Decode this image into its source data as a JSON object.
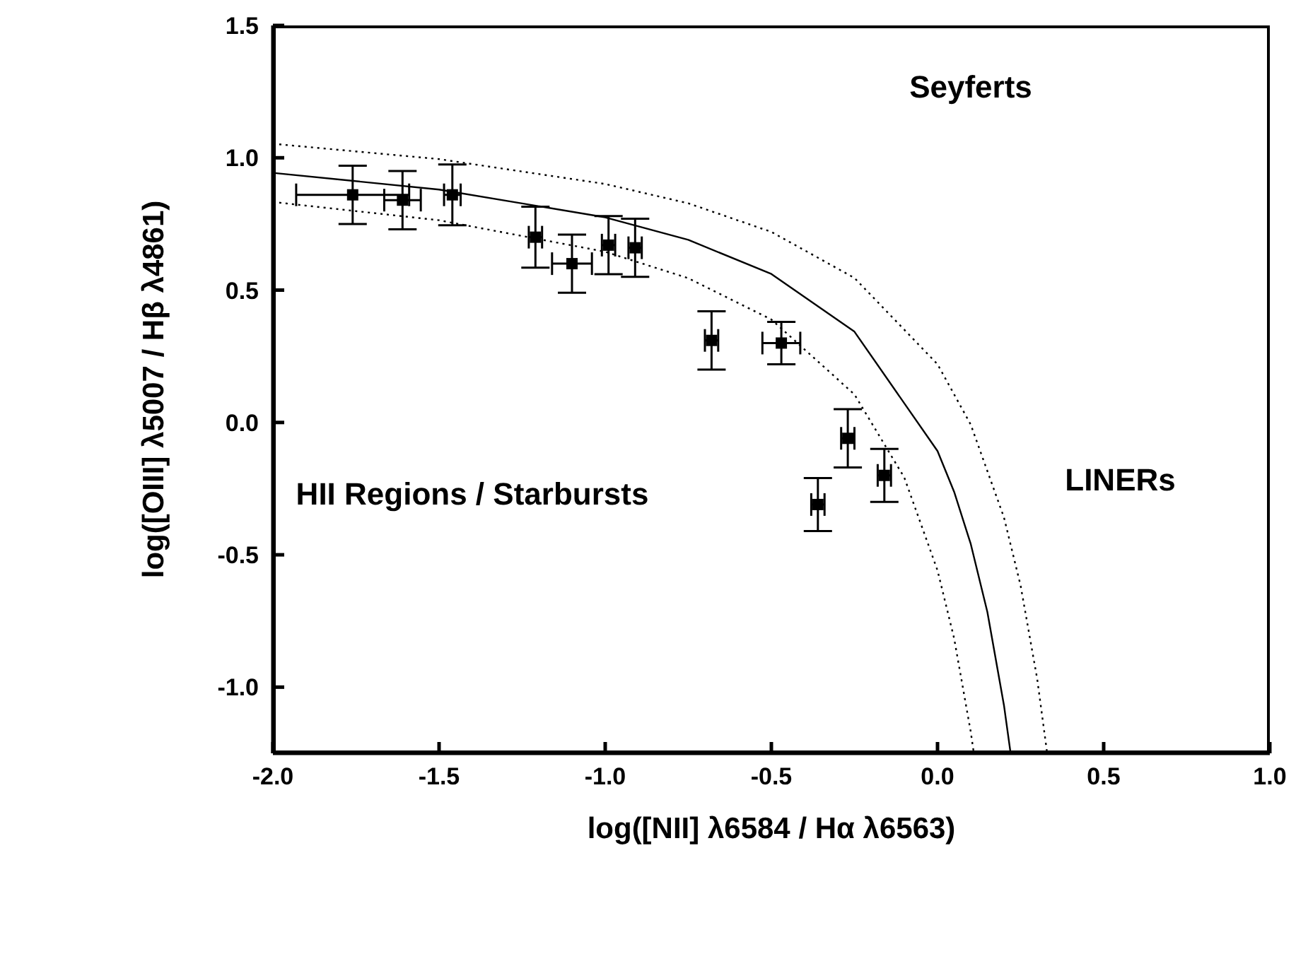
{
  "chart_data": {
    "type": "scatter",
    "xlabel": "log([NII] λ6584 / Hα λ6563)",
    "ylabel": "log([OIII] λ5007 / Hβ λ4861)",
    "xlim": [
      -2.0,
      1.0
    ],
    "ylim": [
      -1.25,
      1.5
    ],
    "xticks": [
      {
        "value": -2,
        "label": "-2.0"
      },
      {
        "value": -1.5,
        "label": "-1.5"
      },
      {
        "value": -1,
        "label": "-1.0"
      },
      {
        "value": -0.5,
        "label": "-0.5"
      },
      {
        "value": 0,
        "label": "0.0"
      },
      {
        "value": 0.5,
        "label": "0.5"
      },
      {
        "value": 1,
        "label": "1.0"
      }
    ],
    "yticks": [
      {
        "value": -1,
        "label": "-1.0"
      },
      {
        "value": -0.5,
        "label": "-0.5"
      },
      {
        "value": 0,
        "label": "0.0"
      },
      {
        "value": 0.5,
        "label": "0.5"
      },
      {
        "value": 1,
        "label": "1.0"
      },
      {
        "value": 1.5,
        "label": "1.5"
      }
    ],
    "grid": false,
    "legend": false,
    "annotations": [
      "Seyferts",
      "LINERs",
      "HII Regions / Starbursts"
    ],
    "series": [
      {
        "type": "scatter",
        "color": "#000000",
        "marker": "square",
        "x": [
          -1.76,
          -1.61,
          -1.46,
          -1.21,
          -1.1,
          -0.99,
          -0.91,
          -0.68,
          -0.47,
          -0.27,
          -0.16,
          -0.36
        ],
        "values": [
          0.86,
          0.84,
          0.86,
          0.7,
          0.6,
          0.67,
          0.66,
          0.31,
          0.3,
          -0.06,
          -0.2,
          -0.31
        ],
        "errors": [
          0.11,
          0.11,
          0.115,
          0.115,
          0.11,
          0.11,
          0.11,
          0.11,
          0.08,
          0.11,
          0.1,
          0.1
        ],
        "xerrors": [
          0.17,
          0.055,
          0.025,
          0.02,
          0.06,
          0.02,
          0.02,
          0.02,
          0.057,
          0.02,
          0.02,
          0.02
        ]
      },
      {
        "type": "line",
        "color": "#000000",
        "line_style": "solid",
        "marker": "none",
        "x": [
          -2.0,
          -1.5,
          -1.0,
          -0.75,
          -0.5,
          -0.25,
          0,
          0.05,
          0.1,
          0.15,
          0.2,
          0.22
        ],
        "values": [
          0.943,
          0.88,
          0.775,
          0.69,
          0.561,
          0.343,
          -0.108,
          -0.262,
          -0.459,
          -0.716,
          -1.069,
          -1.25
        ]
      },
      {
        "type": "line",
        "color": "#000000",
        "line_style": "dotted",
        "marker": "none",
        "x": [
          -2.0,
          -1.5,
          -1.0,
          -0.75,
          -0.5,
          -0.25,
          -0.1,
          0,
          0.05,
          0.1,
          0.109
        ],
        "values": [
          0.833,
          0.764,
          0.645,
          0.545,
          0.389,
          0.106,
          -0.208,
          -0.559,
          -0.816,
          -1.169,
          -1.247
        ]
      },
      {
        "type": "line",
        "color": "#000000",
        "line_style": "dotted",
        "marker": "none",
        "x": [
          -2.0,
          -1.5,
          -1.0,
          -0.75,
          -0.5,
          -0.25,
          0,
          0.1,
          0.2,
          0.25,
          0.3,
          0.329
        ],
        "values": [
          1.053,
          0.995,
          0.901,
          0.828,
          0.72,
          0.546,
          0.22,
          -0.008,
          -0.359,
          -0.616,
          -0.969,
          -1.241
        ]
      }
    ]
  }
}
